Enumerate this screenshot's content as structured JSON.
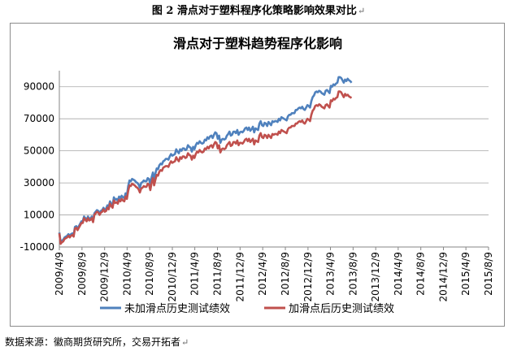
{
  "figure": {
    "caption": "图 2  滑点对于塑料程序化策略影响效果对比"
  },
  "source": {
    "text": "数据来源：徽商期货研究所，交易开拓者"
  },
  "chart_data": {
    "type": "line",
    "title": "滑点对于塑料趋势程序化影响",
    "xlabel": "",
    "ylabel": "",
    "ylim": [
      -10000,
      100000
    ],
    "yticks": [
      -10000,
      10000,
      30000,
      50000,
      70000,
      90000
    ],
    "grid": true,
    "legend_position": "bottom",
    "x_start": "2009/4/9",
    "x_end": "2015/8/9",
    "x_step_weeks": 1,
    "xticks": [
      "2009/4/9",
      "2009/8/9",
      "2009/12/9",
      "2010/4/9",
      "2010/8/9",
      "2010/12/9",
      "2011/4/9",
      "2011/8/9",
      "2011/12/9",
      "2012/4/9",
      "2012/8/9",
      "2012/12/9",
      "2013/4/9",
      "2013/8/9",
      "2013/12/9",
      "2014/4/9",
      "2014/8/9",
      "2014/12/9",
      "2015/4/9",
      "2015/8/9"
    ],
    "series": [
      {
        "name": "未加滑点历史测试绩效",
        "color": "#4F81BD",
        "values": [
          -1000,
          -7000,
          -6000,
          -5500,
          -4000,
          -3500,
          -3000,
          -2000,
          -3000,
          -2000,
          -1500,
          -2500,
          2500,
          3000,
          1500,
          3000,
          4500,
          6000,
          6000,
          9000,
          8000,
          7000,
          9000,
          7500,
          8000,
          9000,
          6500,
          11000,
          12000,
          13000,
          12500,
          11000,
          12500,
          13000,
          14500,
          13000,
          14000,
          16000,
          15000,
          18500,
          17000,
          16000,
          21000,
          19500,
          20000,
          19000,
          21500,
          20500,
          22000,
          21000,
          20500,
          23500,
          22000,
          28000,
          31500,
          31000,
          32500,
          32000,
          31500,
          30500,
          30000,
          29000,
          27000,
          30000,
          30500,
          31500,
          31000,
          31000,
          33000,
          32500,
          29000,
          33500,
          36500,
          32000,
          36000,
          39000,
          38500,
          41000,
          42000,
          41500,
          43500,
          44000,
          45000,
          45000,
          44500,
          46500,
          48000,
          47000,
          47500,
          48000,
          51000,
          49500,
          48500,
          51000,
          50000,
          51500,
          51500,
          50500,
          51000,
          53500,
          52500,
          52000,
          49500,
          52500,
          51000,
          53500,
          55000,
          54500,
          56000,
          55000,
          54500,
          55000,
          57000,
          56500,
          58500,
          57500,
          59000,
          59500,
          58000,
          60000,
          61500,
          61000,
          57500,
          59500,
          55000,
          57000,
          57500,
          57000,
          57500,
          59500,
          60500,
          62000,
          59500,
          60000,
          62000,
          62000,
          61000,
          63000,
          60000,
          61500,
          62000,
          61500,
          62500,
          64000,
          64500,
          63000,
          64500,
          62500,
          63500,
          65000,
          61500,
          64000,
          63500,
          63000,
          67000,
          68500,
          66000,
          65500,
          67500,
          67000,
          65500,
          68000,
          67000,
          66000,
          68500,
          68000,
          68500,
          68500,
          68000,
          70000,
          69000,
          71000,
          70500,
          70000,
          69500,
          69000,
          71500,
          72500,
          72500,
          73500,
          73500,
          73500,
          75500,
          75500,
          76500,
          77000,
          76500,
          77500,
          76000,
          75500,
          77000,
          78500,
          78000,
          77000,
          81000,
          83500,
          84500,
          86500,
          87000,
          86500,
          87500,
          87000,
          86000,
          85500,
          85000,
          87500,
          88000,
          87000,
          86000,
          90500,
          90000,
          91500,
          91000,
          92000,
          92500,
          96000,
          96000,
          95500,
          94000,
          92500,
          94500,
          93500,
          95000,
          94000,
          93500,
          92500
        ]
      },
      {
        "name": "加滑点后历史测试绩效",
        "color": "#C0504D",
        "values": [
          -1500,
          -8000,
          -7000,
          -6500,
          -5000,
          -4500,
          -4000,
          -3000,
          -4000,
          -3000,
          -2500,
          -3500,
          1500,
          2000,
          500,
          2000,
          3500,
          5000,
          5000,
          8000,
          7000,
          6000,
          8000,
          6500,
          7000,
          8000,
          5500,
          10000,
          11000,
          12000,
          11500,
          10000,
          11500,
          12000,
          13500,
          12000,
          12500,
          14500,
          13500,
          17000,
          15500,
          14500,
          19000,
          17500,
          18000,
          17000,
          19500,
          18500,
          20000,
          19000,
          18500,
          21500,
          20000,
          25000,
          28500,
          28000,
          29500,
          29000,
          28500,
          27500,
          27000,
          26000,
          24000,
          26500,
          27000,
          28000,
          27500,
          27500,
          29500,
          29000,
          25500,
          30000,
          33000,
          28500,
          32000,
          35000,
          34500,
          37000,
          38000,
          37500,
          39500,
          40000,
          40500,
          40500,
          40000,
          42000,
          43500,
          42500,
          43000,
          43500,
          46000,
          44500,
          43500,
          46000,
          45000,
          46500,
          46500,
          45500,
          46000,
          48500,
          47500,
          47000,
          44500,
          47000,
          45500,
          48000,
          49500,
          49000,
          50500,
          49500,
          49000,
          49500,
          51500,
          51000,
          52500,
          51500,
          53000,
          53500,
          52000,
          54000,
          55500,
          55000,
          51500,
          53500,
          49000,
          51000,
          51500,
          51000,
          51500,
          53500,
          54500,
          55500,
          53000,
          53500,
          55500,
          55500,
          54500,
          56500,
          53500,
          55000,
          55000,
          54500,
          55500,
          57000,
          57500,
          56000,
          57500,
          55500,
          56500,
          57500,
          54000,
          56500,
          56000,
          55500,
          59500,
          61000,
          58500,
          58000,
          60000,
          59500,
          58000,
          60000,
          59000,
          58000,
          60500,
          60000,
          60500,
          60500,
          60000,
          62000,
          61000,
          63000,
          62500,
          62000,
          61500,
          61000,
          63500,
          64500,
          64500,
          65500,
          65500,
          65500,
          67000,
          67000,
          68000,
          68500,
          68000,
          69000,
          67500,
          67000,
          68500,
          70000,
          69500,
          68500,
          72500,
          75000,
          76000,
          78000,
          78500,
          78000,
          79000,
          78500,
          77500,
          77000,
          76500,
          78500,
          79000,
          78000,
          77000,
          81500,
          81000,
          82500,
          82000,
          83000,
          83500,
          87000,
          87000,
          86500,
          85000,
          83500,
          85500,
          84500,
          85000,
          84000,
          83500,
          83000
        ]
      }
    ]
  }
}
